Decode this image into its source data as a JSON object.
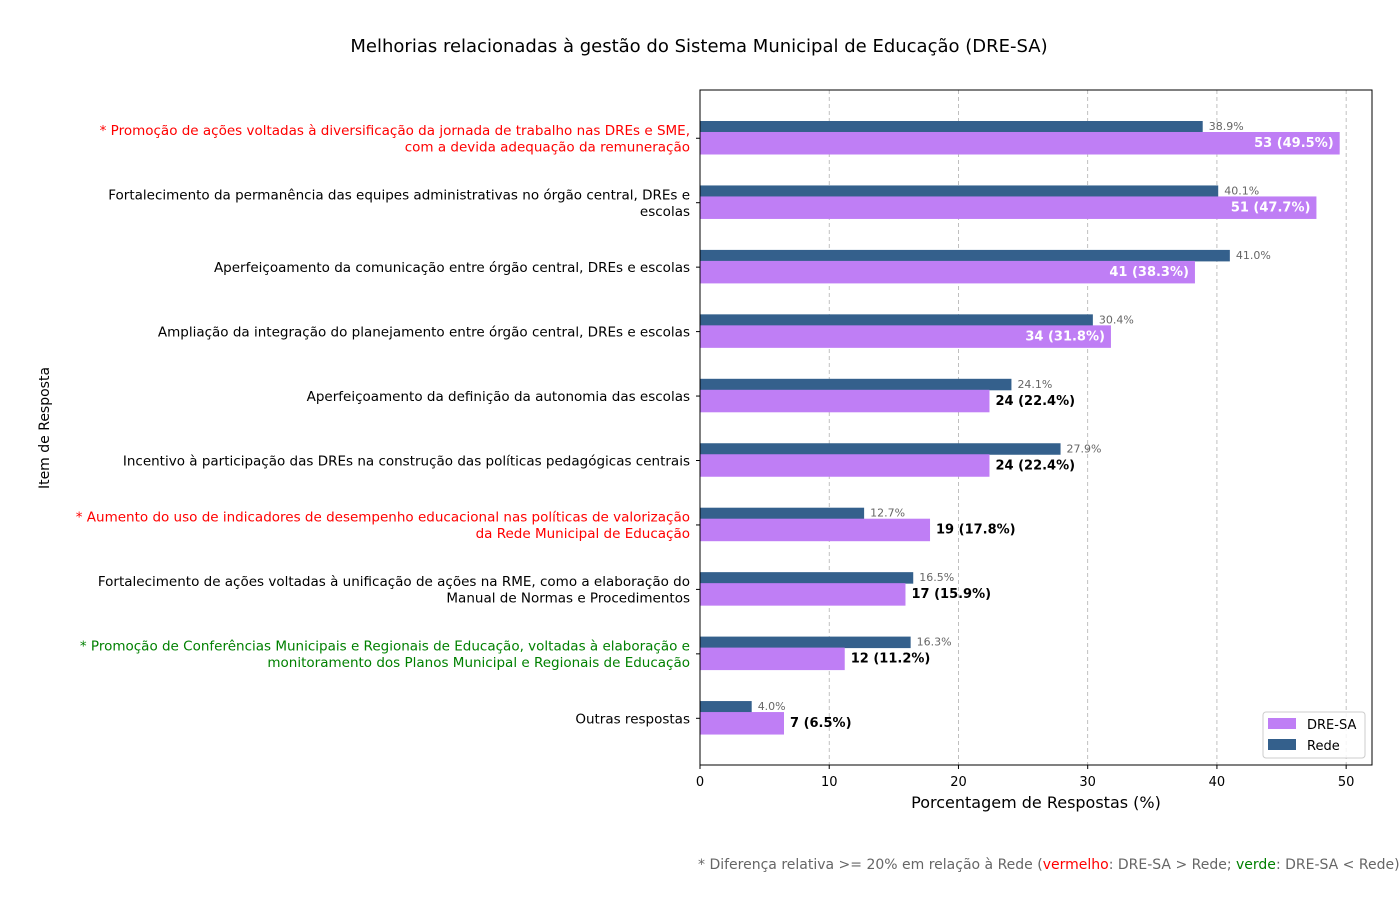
{
  "chart_data": {
    "type": "bar",
    "orientation": "horizontal",
    "title": "Melhorias relacionadas à gestão do Sistema Municipal de Educação (DRE-SA)",
    "xlabel": "Porcentagem de Respostas (%)",
    "ylabel": "Item de Resposta",
    "xlim": [
      0,
      52
    ],
    "xticks": [
      0,
      10,
      20,
      30,
      40,
      50
    ],
    "grid": "x, dashed",
    "legend_position": "lower-right",
    "categories": [
      {
        "lines": [
          "* Promoção de ações voltadas à diversificação da jornada de trabalho nas DREs e SME,",
          "com a devida adequação da remuneração"
        ],
        "highlight": "red"
      },
      {
        "lines": [
          "Fortalecimento da permanência das equipes administrativas no órgão central, DREs e",
          "escolas"
        ],
        "highlight": "none"
      },
      {
        "lines": [
          "Aperfeiçoamento da comunicação entre órgão central, DREs e escolas"
        ],
        "highlight": "none"
      },
      {
        "lines": [
          "Ampliação da integração do planejamento entre órgão central, DREs e escolas"
        ],
        "highlight": "none"
      },
      {
        "lines": [
          "Aperfeiçoamento da definição da autonomia das escolas"
        ],
        "highlight": "none"
      },
      {
        "lines": [
          "Incentivo à participação das DREs na construção das políticas pedagógicas centrais"
        ],
        "highlight": "none"
      },
      {
        "lines": [
          "* Aumento do uso de indicadores de desempenho educacional nas políticas de valorização",
          "da Rede Municipal de Educação"
        ],
        "highlight": "red"
      },
      {
        "lines": [
          "Fortalecimento de ações voltadas à unificação de ações na RME, como a elaboração do",
          "Manual de Normas e Procedimentos"
        ],
        "highlight": "none"
      },
      {
        "lines": [
          "* Promoção de Conferências Municipais e Regionais de Educação, voltadas à elaboração e",
          "monitoramento dos Planos Municipal e Regionais de Educação"
        ],
        "highlight": "green"
      },
      {
        "lines": [
          "Outras respostas"
        ],
        "highlight": "none"
      }
    ],
    "series": [
      {
        "name": "DRE-SA",
        "values": [
          49.5,
          47.7,
          38.3,
          31.8,
          22.4,
          22.4,
          17.8,
          15.9,
          11.2,
          6.5
        ],
        "labels": [
          "53 (49.5%)",
          "51 (47.7%)",
          "41 (38.3%)",
          "34 (31.8%)",
          "24 (22.4%)",
          "24 (22.4%)",
          "19 (17.8%)",
          "17 (15.9%)",
          "12 (11.2%)",
          "7 (6.5%)"
        ]
      },
      {
        "name": "Rede",
        "values": [
          38.9,
          40.1,
          41.0,
          30.4,
          24.1,
          27.9,
          12.7,
          16.5,
          16.3,
          4.0
        ],
        "labels": [
          "38.9%",
          "40.1%",
          "41.0%",
          "30.4%",
          "24.1%",
          "27.9%",
          "12.7%",
          "16.5%",
          "16.3%",
          "4.0%"
        ]
      }
    ]
  },
  "colors": {
    "dre_sa": "#bf7ef5",
    "rede": "#34608c",
    "highlight_red": "#ff0000",
    "highlight_green": "#008000",
    "grid": "#b0b0b0",
    "rede_label": "#666666"
  },
  "footnote": {
    "prefix": "* Diferença relativa >= 20% em relação à Rede (",
    "red_word": "vermelho",
    "middle": ": DRE-SA > Rede; ",
    "green_word": "verde",
    "suffix": ": DRE-SA < Rede)"
  }
}
